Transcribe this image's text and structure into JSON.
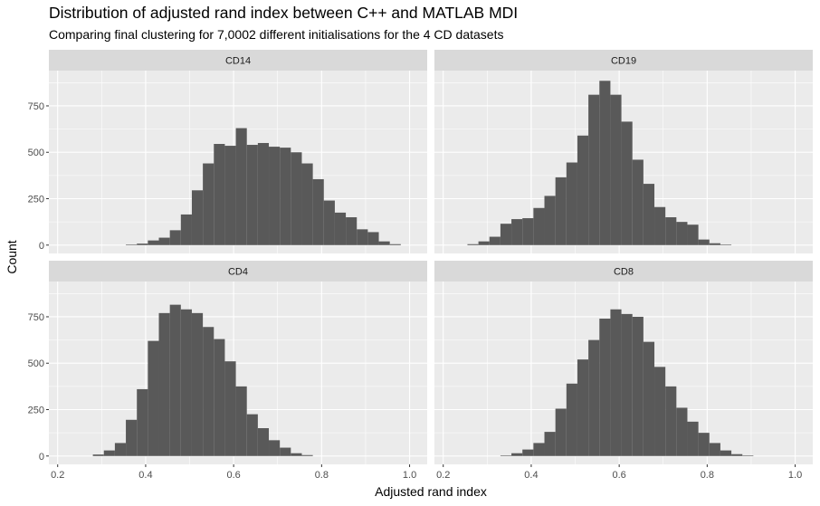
{
  "chart_data": {
    "type": "histogram",
    "title": "Distribution of adjusted rand index between C++ and MATLAB MDI",
    "subtitle": "Comparing final clustering for 7,0002 different initialisations for the 4 CD datasets",
    "xlabel": "Adjusted rand index",
    "ylabel": "Count",
    "xlim": [
      0.18,
      1.04
    ],
    "ylim": [
      -45,
      940
    ],
    "x_ticks": [
      0.2,
      0.4,
      0.6,
      0.8,
      1.0
    ],
    "x_tick_labels": [
      "0.2",
      "0.4",
      "0.6",
      "0.8",
      "1.0"
    ],
    "y_ticks": [
      0,
      250,
      500,
      750
    ],
    "y_tick_labels": [
      "0",
      "250",
      "500",
      "750"
    ],
    "bin_width": 0.025,
    "bar_color": "#595959",
    "panel_background": "#ebebeb",
    "strip_background": "#d9d9d9",
    "grid": true,
    "panels": [
      {
        "name": "CD14",
        "bins": [
          {
            "x0": 0.355,
            "y": 3
          },
          {
            "x0": 0.38,
            "y": 8
          },
          {
            "x0": 0.405,
            "y": 25
          },
          {
            "x0": 0.43,
            "y": 40
          },
          {
            "x0": 0.455,
            "y": 80
          },
          {
            "x0": 0.48,
            "y": 165
          },
          {
            "x0": 0.505,
            "y": 295
          },
          {
            "x0": 0.53,
            "y": 440
          },
          {
            "x0": 0.555,
            "y": 545
          },
          {
            "x0": 0.58,
            "y": 535
          },
          {
            "x0": 0.605,
            "y": 630
          },
          {
            "x0": 0.63,
            "y": 540
          },
          {
            "x0": 0.655,
            "y": 550
          },
          {
            "x0": 0.68,
            "y": 530
          },
          {
            "x0": 0.705,
            "y": 525
          },
          {
            "x0": 0.73,
            "y": 500
          },
          {
            "x0": 0.755,
            "y": 440
          },
          {
            "x0": 0.78,
            "y": 355
          },
          {
            "x0": 0.805,
            "y": 240
          },
          {
            "x0": 0.83,
            "y": 175
          },
          {
            "x0": 0.855,
            "y": 150
          },
          {
            "x0": 0.88,
            "y": 85
          },
          {
            "x0": 0.905,
            "y": 70
          },
          {
            "x0": 0.93,
            "y": 20
          },
          {
            "x0": 0.955,
            "y": 5
          }
        ]
      },
      {
        "name": "CD19",
        "bins": [
          {
            "x0": 0.255,
            "y": 5
          },
          {
            "x0": 0.28,
            "y": 20
          },
          {
            "x0": 0.305,
            "y": 45
          },
          {
            "x0": 0.33,
            "y": 115
          },
          {
            "x0": 0.355,
            "y": 140
          },
          {
            "x0": 0.38,
            "y": 145
          },
          {
            "x0": 0.405,
            "y": 200
          },
          {
            "x0": 0.43,
            "y": 265
          },
          {
            "x0": 0.455,
            "y": 365
          },
          {
            "x0": 0.48,
            "y": 445
          },
          {
            "x0": 0.505,
            "y": 590
          },
          {
            "x0": 0.53,
            "y": 810
          },
          {
            "x0": 0.555,
            "y": 885
          },
          {
            "x0": 0.58,
            "y": 810
          },
          {
            "x0": 0.605,
            "y": 665
          },
          {
            "x0": 0.63,
            "y": 460
          },
          {
            "x0": 0.655,
            "y": 330
          },
          {
            "x0": 0.68,
            "y": 205
          },
          {
            "x0": 0.705,
            "y": 150
          },
          {
            "x0": 0.73,
            "y": 125
          },
          {
            "x0": 0.755,
            "y": 110
          },
          {
            "x0": 0.78,
            "y": 30
          },
          {
            "x0": 0.805,
            "y": 10
          },
          {
            "x0": 0.83,
            "y": 3
          }
        ]
      },
      {
        "name": "CD4",
        "bins": [
          {
            "x0": 0.28,
            "y": 8
          },
          {
            "x0": 0.305,
            "y": 30
          },
          {
            "x0": 0.33,
            "y": 70
          },
          {
            "x0": 0.355,
            "y": 195
          },
          {
            "x0": 0.38,
            "y": 360
          },
          {
            "x0": 0.405,
            "y": 620
          },
          {
            "x0": 0.43,
            "y": 770
          },
          {
            "x0": 0.455,
            "y": 815
          },
          {
            "x0": 0.48,
            "y": 790
          },
          {
            "x0": 0.505,
            "y": 770
          },
          {
            "x0": 0.53,
            "y": 695
          },
          {
            "x0": 0.555,
            "y": 630
          },
          {
            "x0": 0.58,
            "y": 510
          },
          {
            "x0": 0.605,
            "y": 375
          },
          {
            "x0": 0.63,
            "y": 225
          },
          {
            "x0": 0.655,
            "y": 150
          },
          {
            "x0": 0.68,
            "y": 85
          },
          {
            "x0": 0.705,
            "y": 45
          },
          {
            "x0": 0.73,
            "y": 15
          },
          {
            "x0": 0.755,
            "y": 5
          }
        ]
      },
      {
        "name": "CD8",
        "bins": [
          {
            "x0": 0.33,
            "y": 3
          },
          {
            "x0": 0.355,
            "y": 15
          },
          {
            "x0": 0.38,
            "y": 35
          },
          {
            "x0": 0.405,
            "y": 70
          },
          {
            "x0": 0.43,
            "y": 130
          },
          {
            "x0": 0.455,
            "y": 255
          },
          {
            "x0": 0.48,
            "y": 390
          },
          {
            "x0": 0.505,
            "y": 520
          },
          {
            "x0": 0.53,
            "y": 625
          },
          {
            "x0": 0.555,
            "y": 740
          },
          {
            "x0": 0.58,
            "y": 790
          },
          {
            "x0": 0.605,
            "y": 765
          },
          {
            "x0": 0.63,
            "y": 750
          },
          {
            "x0": 0.655,
            "y": 615
          },
          {
            "x0": 0.68,
            "y": 480
          },
          {
            "x0": 0.705,
            "y": 375
          },
          {
            "x0": 0.73,
            "y": 260
          },
          {
            "x0": 0.755,
            "y": 185
          },
          {
            "x0": 0.78,
            "y": 125
          },
          {
            "x0": 0.805,
            "y": 70
          },
          {
            "x0": 0.83,
            "y": 30
          },
          {
            "x0": 0.855,
            "y": 10
          },
          {
            "x0": 0.88,
            "y": 3
          }
        ]
      }
    ]
  }
}
